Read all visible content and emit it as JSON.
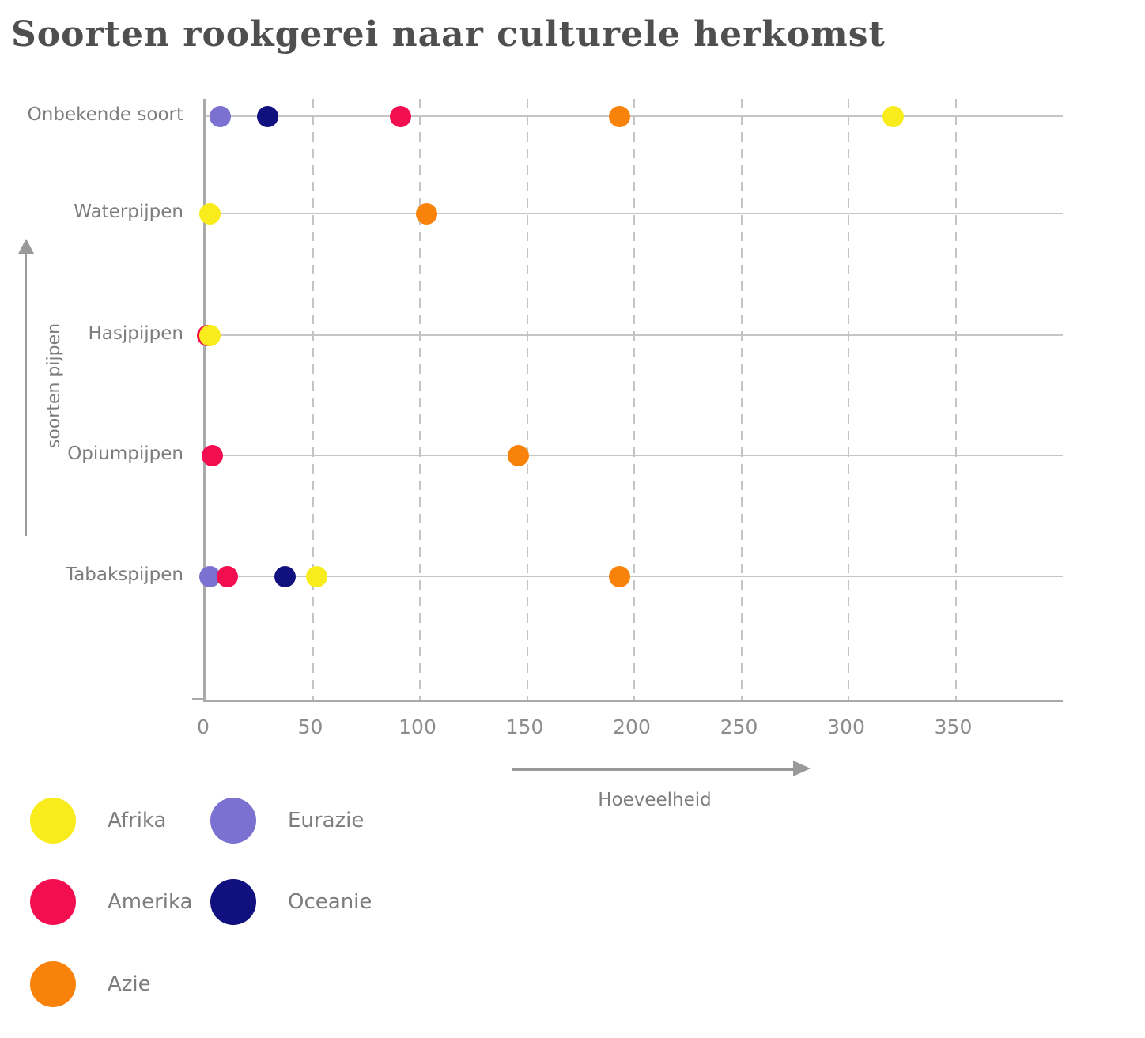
{
  "chart_data": {
    "type": "scatter",
    "subtype": "horizontal-dot-plot",
    "title": "Soorten rookgerei naar culturele herkomst",
    "xlabel": "Hoeveelheid",
    "ylabel": "soorten pijpen",
    "xlim": [
      0,
      400
    ],
    "x_ticks": [
      0,
      50,
      100,
      150,
      200,
      250,
      300,
      350
    ],
    "grid": "horizontal solid line per category, vertical dashed line per x tick",
    "legend_position": "bottom-left",
    "categories": [
      "Onbekende soort",
      "Waterpijpen",
      "Hasjpijpen",
      "Opiumpijpen",
      "Tabakspijpen"
    ],
    "series": [
      {
        "name": "Afrika",
        "color": "#f8ec1c",
        "values": [
          321,
          2,
          2,
          null,
          52
        ]
      },
      {
        "name": "Amerika",
        "color": "#f30f4f",
        "values": [
          91,
          null,
          1,
          3,
          10
        ]
      },
      {
        "name": "Azie",
        "color": "#f8820a",
        "values": [
          193,
          103,
          null,
          146,
          193
        ]
      },
      {
        "name": "Eurazie",
        "color": "#7b71d1",
        "values": [
          7,
          null,
          null,
          null,
          2
        ]
      },
      {
        "name": "Oceanie",
        "color": "#10107e",
        "values": [
          29,
          null,
          null,
          null,
          37
        ]
      }
    ]
  }
}
